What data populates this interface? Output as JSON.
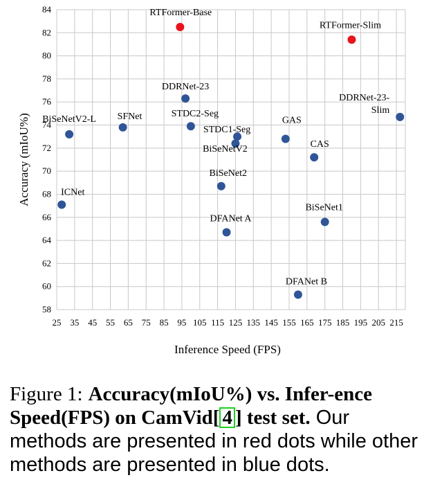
{
  "chart_data": {
    "type": "scatter",
    "xlabel": "Inference Speed (FPS)",
    "ylabel": "Accuracy (mIoU%)",
    "xlim": [
      25,
      220
    ],
    "ylim": [
      58,
      84
    ],
    "xticks": [
      25,
      35,
      45,
      55,
      65,
      75,
      85,
      95,
      105,
      115,
      125,
      135,
      145,
      155,
      165,
      175,
      185,
      195,
      205,
      215
    ],
    "yticks": [
      58,
      60,
      62,
      64,
      66,
      68,
      70,
      72,
      74,
      76,
      78,
      80,
      82,
      84
    ],
    "grid": true,
    "colors": {
      "ours": "#e8141c",
      "others": "#2f5597",
      "grid": "#c8c8c8"
    },
    "points": [
      {
        "name": "RTFormer-Base",
        "x": 94,
        "y": 82.5,
        "group": "ours",
        "lines": [
          "RTFormer-Base"
        ]
      },
      {
        "name": "RTFormer-Slim",
        "x": 190,
        "y": 81.4,
        "group": "ours",
        "lines": [
          "RTFormer-Slim"
        ]
      },
      {
        "name": "DDRNet-23",
        "x": 97,
        "y": 76.3,
        "group": "others",
        "lines": [
          "DDRNet-23"
        ]
      },
      {
        "name": "DDRNet-23-Slim",
        "x": 217,
        "y": 74.7,
        "group": "others",
        "lines": [
          "DDRNet-23-",
          "Slim"
        ]
      },
      {
        "name": "BiSeNetV2-L",
        "x": 32,
        "y": 73.2,
        "group": "others",
        "lines": [
          "BiSeNetV2-L"
        ]
      },
      {
        "name": "SFNet",
        "x": 62,
        "y": 73.8,
        "group": "others",
        "lines": [
          "SFNet"
        ]
      },
      {
        "name": "STDC2-Seg",
        "x": 100,
        "y": 73.9,
        "group": "others",
        "lines": [
          "STDC2-Seg"
        ]
      },
      {
        "name": "STDC1-Seg",
        "x": 126,
        "y": 73.0,
        "group": "others",
        "lines": [
          "STDC1-Seg"
        ]
      },
      {
        "name": "BiSeNetV2",
        "x": 125,
        "y": 72.4,
        "group": "others",
        "lines": [
          "BiSeNetV2"
        ]
      },
      {
        "name": "GAS",
        "x": 153,
        "y": 72.8,
        "group": "others",
        "lines": [
          "GAS"
        ]
      },
      {
        "name": "CAS",
        "x": 169,
        "y": 71.2,
        "group": "others",
        "lines": [
          "CAS"
        ]
      },
      {
        "name": "BiSeNet2",
        "x": 117,
        "y": 68.7,
        "group": "others",
        "lines": [
          "BiSeNet2"
        ]
      },
      {
        "name": "ICNet",
        "x": 27.8,
        "y": 67.1,
        "group": "others",
        "lines": [
          "ICNet"
        ]
      },
      {
        "name": "BiSeNet1",
        "x": 175,
        "y": 65.6,
        "group": "others",
        "lines": [
          "BiSeNet1"
        ]
      },
      {
        "name": "DFANet A",
        "x": 120,
        "y": 64.7,
        "group": "others",
        "lines": [
          "DFANet A"
        ]
      },
      {
        "name": "DFANet B",
        "x": 160,
        "y": 59.3,
        "group": "others",
        "lines": [
          "DFANet B"
        ]
      }
    ]
  },
  "caption": {
    "figure_label": "Figure 1:",
    "bold_part1": "Accuracy(mIoU%) vs. Infer-ence Speed(FPS) on CamVid[",
    "ref": "4",
    "bold_part2": "] test set.",
    "normal_text": "Our methods are presented in red dots while other methods are presented in blue dots."
  }
}
